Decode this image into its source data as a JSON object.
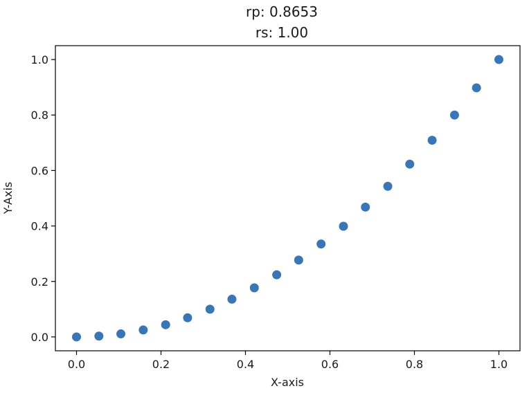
{
  "chart_data": {
    "type": "scatter",
    "title_lines": [
      "rp: 0.8653",
      "rs: 1.00"
    ],
    "xlabel": "X-axis",
    "ylabel": "Y-Axis",
    "xlim": [
      -0.05,
      1.05
    ],
    "ylim": [
      -0.05,
      1.05
    ],
    "xticks": [
      0.0,
      0.2,
      0.4,
      0.6,
      0.8,
      1.0
    ],
    "yticks": [
      0.0,
      0.2,
      0.4,
      0.6,
      0.8,
      1.0
    ],
    "xtick_labels": [
      "0.0",
      "0.2",
      "0.4",
      "0.6",
      "0.8",
      "1.0"
    ],
    "ytick_labels": [
      "0.0",
      "0.2",
      "0.4",
      "0.6",
      "0.8",
      "1.0"
    ],
    "grid": false,
    "marker_color": "#3a76b5",
    "x": [
      0.0,
      0.053,
      0.105,
      0.158,
      0.211,
      0.263,
      0.316,
      0.368,
      0.421,
      0.474,
      0.526,
      0.579,
      0.632,
      0.684,
      0.737,
      0.789,
      0.842,
      0.895,
      0.947,
      1.0
    ],
    "y": [
      0.0,
      0.003,
      0.011,
      0.025,
      0.044,
      0.069,
      0.1,
      0.136,
      0.177,
      0.224,
      0.277,
      0.335,
      0.399,
      0.468,
      0.543,
      0.623,
      0.709,
      0.8,
      0.898,
      1.0
    ]
  }
}
